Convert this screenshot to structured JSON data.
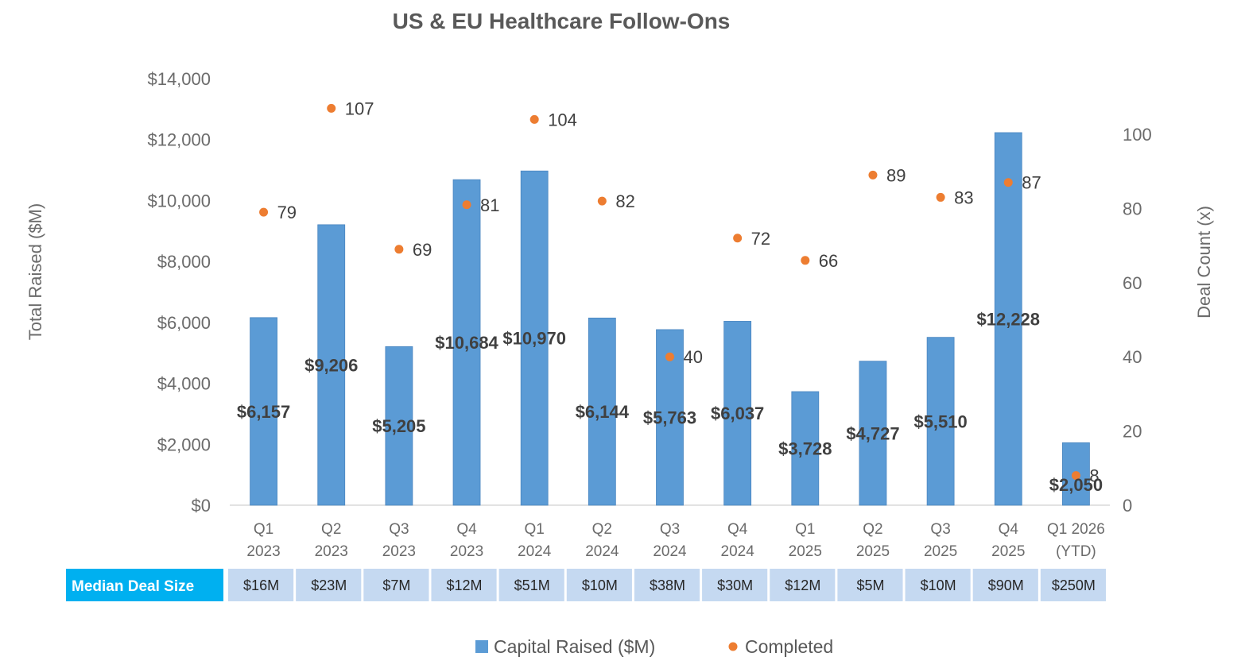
{
  "chart_data": {
    "type": "bar",
    "title": "US & EU Healthcare Follow-Ons",
    "categories": [
      [
        "Q1",
        "2023"
      ],
      [
        "Q2",
        "2023"
      ],
      [
        "Q3",
        "2023"
      ],
      [
        "Q4",
        "2023"
      ],
      [
        "Q1",
        "2024"
      ],
      [
        "Q2",
        "2024"
      ],
      [
        "Q3",
        "2024"
      ],
      [
        "Q4",
        "2024"
      ],
      [
        "Q1",
        "2025"
      ],
      [
        "Q2",
        "2025"
      ],
      [
        "Q3",
        "2025"
      ],
      [
        "Q4",
        "2025"
      ],
      [
        "Q1 2026",
        "(YTD)"
      ]
    ],
    "series": [
      {
        "name": "Capital Raised ($M)",
        "type": "bar",
        "axis": "left",
        "color": "#5b9bd5",
        "values": [
          6157,
          9206,
          5205,
          10684,
          10970,
          6144,
          5763,
          6037,
          3728,
          4727,
          5510,
          12228,
          2050
        ],
        "labels": [
          "$6,157",
          "$9,206",
          "$5,205",
          "$10,684",
          "$10,970",
          "$6,144",
          "$5,763",
          "$6,037",
          "$3,728",
          "$4,727",
          "$5,510",
          "$12,228",
          "$2,050"
        ]
      },
      {
        "name": "Completed",
        "type": "scatter",
        "axis": "right",
        "color": "#ed7d31",
        "values": [
          79,
          107,
          69,
          81,
          104,
          82,
          40,
          72,
          66,
          89,
          83,
          87,
          8
        ],
        "labels": [
          "79",
          "107",
          "69",
          "81",
          "104",
          "82",
          "40",
          "72",
          "66",
          "89",
          "83",
          "87",
          "8"
        ]
      }
    ],
    "ylabel": "Total Raised ($M)",
    "y2label": "Deal Count (x)",
    "ylim": [
      0,
      14000
    ],
    "y2lim": [
      0,
      115
    ],
    "yticks": [
      0,
      2000,
      4000,
      6000,
      8000,
      10000,
      12000,
      14000
    ],
    "ytick_labels": [
      "$0",
      "$2,000",
      "$4,000",
      "$6,000",
      "$8,000",
      "$10,000",
      "$12,000",
      "$14,000"
    ],
    "y2ticks": [
      0,
      20,
      40,
      60,
      80,
      100
    ],
    "y2tick_labels": [
      "0",
      "20",
      "40",
      "60",
      "80",
      "100"
    ],
    "grid": false,
    "legend": "bottom-center",
    "table": {
      "header": "Median Deal Size",
      "values": [
        "$16M",
        "$23M",
        "$7M",
        "$12M",
        "$51M",
        "$10M",
        "$38M",
        "$30M",
        "$12M",
        "$5M",
        "$10M",
        "$90M",
        "$250M"
      ],
      "header_color": "#00b0f0",
      "cell_color": "#c5d9f1"
    }
  }
}
